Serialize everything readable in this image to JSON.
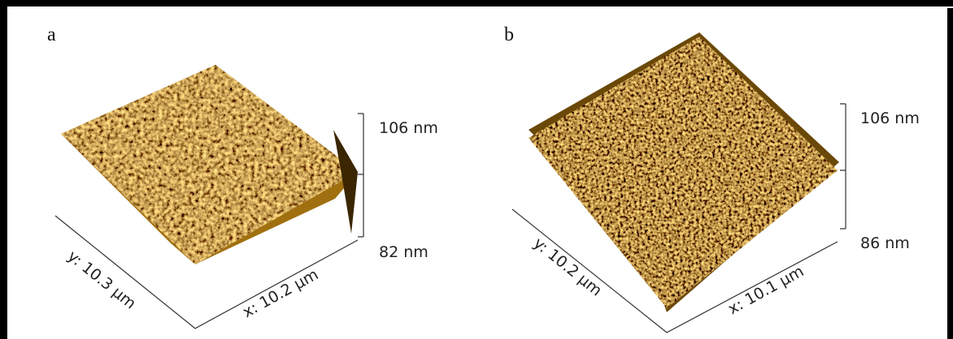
{
  "panels": [
    {
      "label": "a",
      "z_top": "106 nm",
      "z_bottom": "82 nm",
      "x_axis": "x: 10.2 µm",
      "y_axis": "y: 10.3 µm"
    },
    {
      "label": "b",
      "z_top": "106 nm",
      "z_bottom": "86 nm",
      "x_axis": "x: 10.1 µm",
      "y_axis": "y: 10.2 µm"
    }
  ]
}
